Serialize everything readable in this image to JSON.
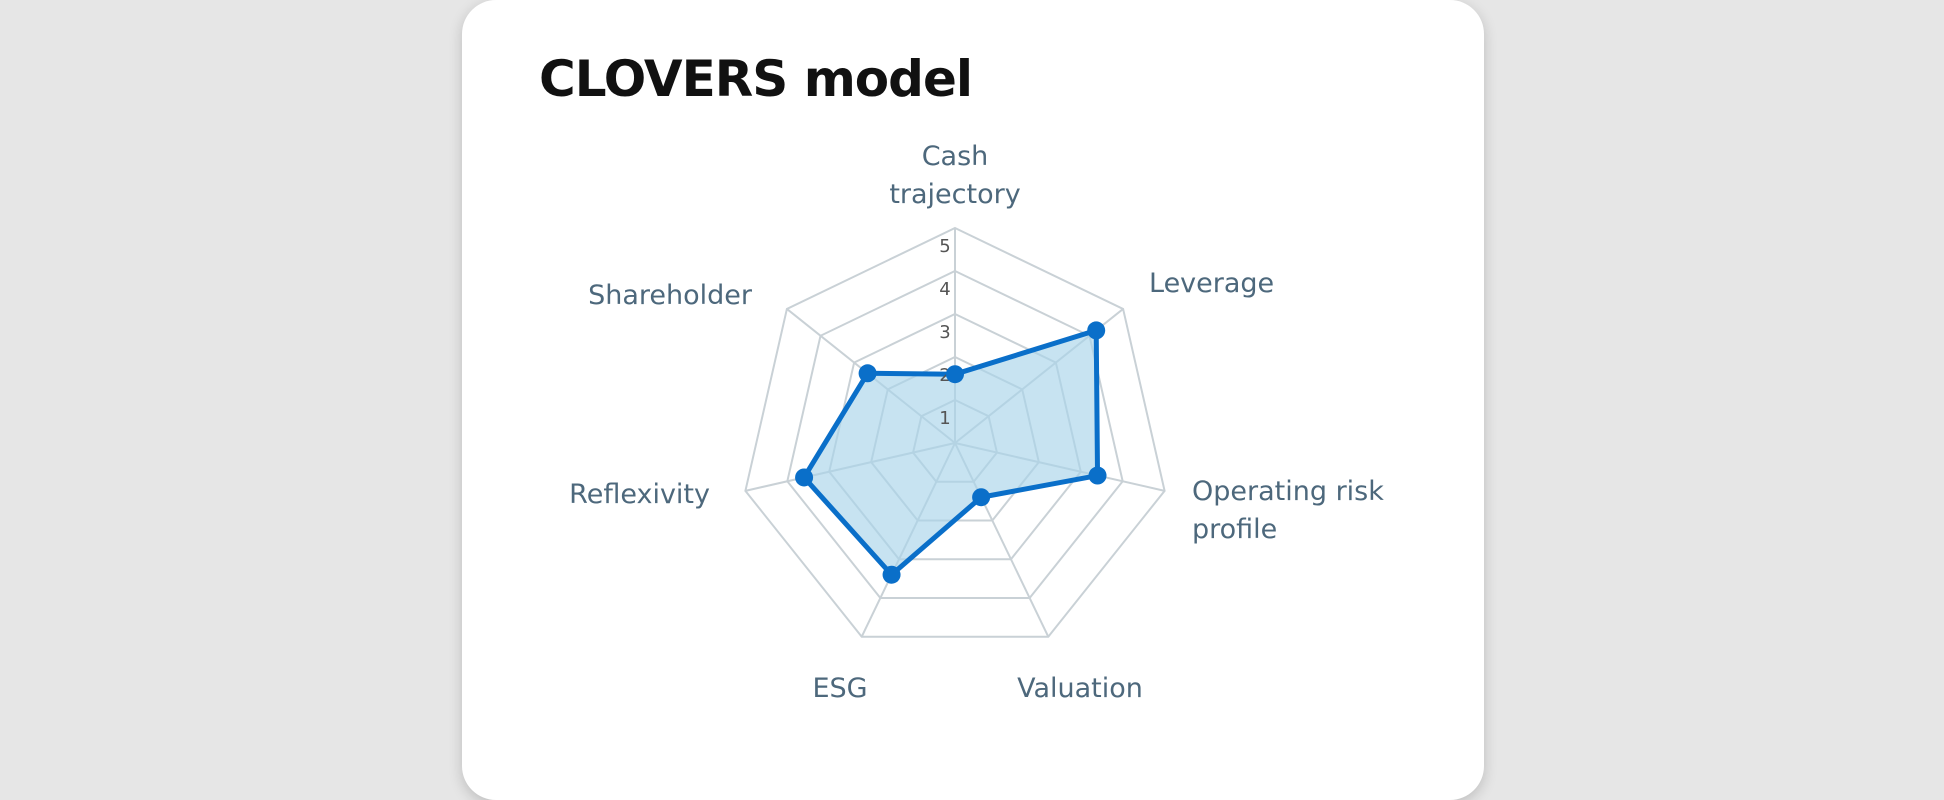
{
  "title": "CLOVERS model",
  "chart_data": {
    "type": "radar",
    "title": "CLOVERS model",
    "categories": [
      "Cash trajectory",
      "Leverage",
      "Operating risk profile",
      "Valuation",
      "ESG",
      "Reflexivity",
      "Shareholder"
    ],
    "category_lines": [
      [
        "Cash",
        "trajectory"
      ],
      [
        "Leverage"
      ],
      [
        "Operating risk",
        "profile"
      ],
      [
        "Valuation"
      ],
      [
        "ESG"
      ],
      [
        "Reflexivity"
      ],
      [
        "Shareholder"
      ]
    ],
    "values": [
      1.6,
      4.2,
      3.4,
      1.4,
      3.4,
      3.6,
      2.6
    ],
    "rlim": [
      0,
      5
    ],
    "ticks": [
      "1",
      "2",
      "3",
      "4",
      "5"
    ],
    "grid": true,
    "colors": {
      "line": "#0a6fc9",
      "fill": "#a9d4ea",
      "grid": "#c9d1d6",
      "label": "#4d687c"
    }
  }
}
